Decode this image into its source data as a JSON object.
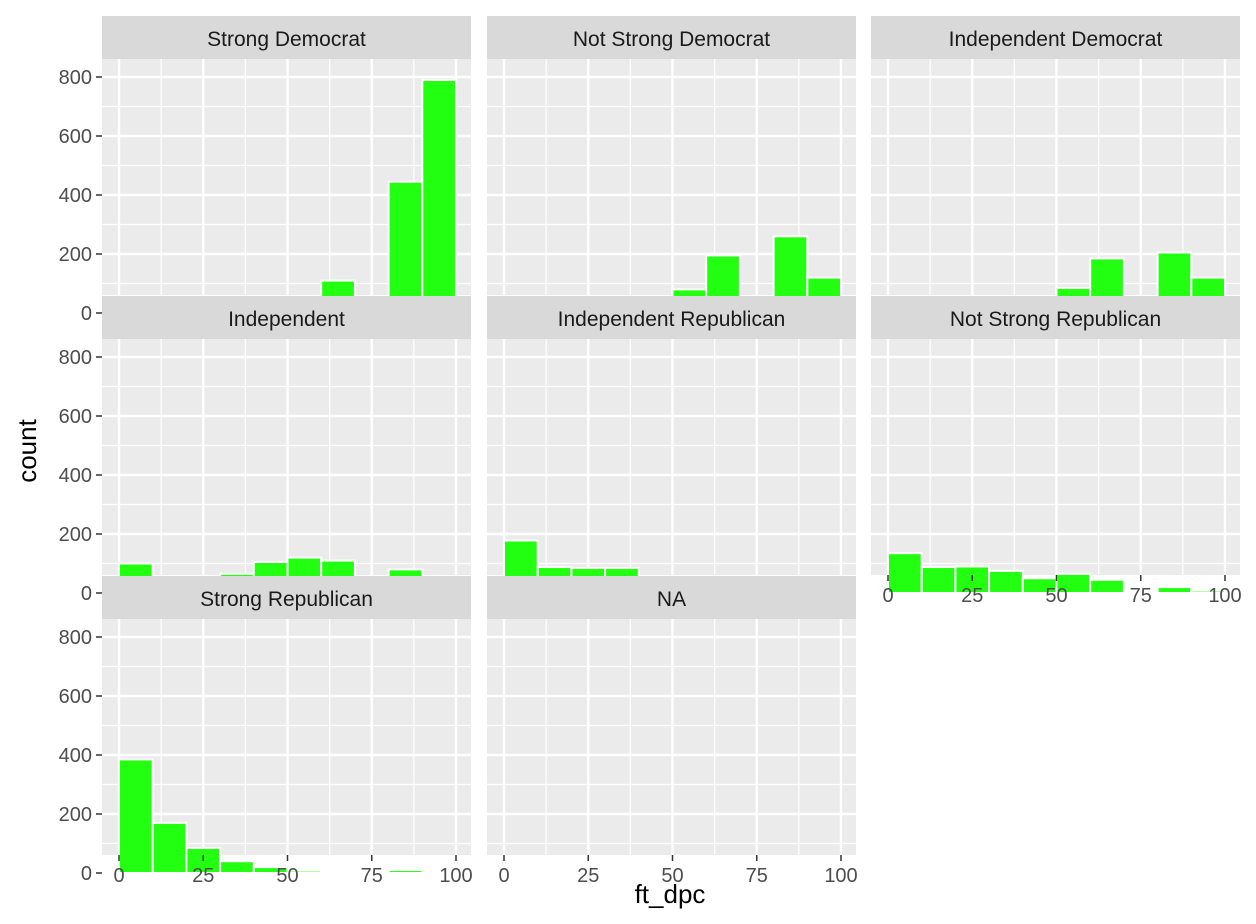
{
  "chart_data": {
    "type": "histogram",
    "xlabel": "ft_dpc",
    "ylabel": "count",
    "ylim": [
      0,
      800
    ],
    "yticks": [
      0,
      200,
      400,
      600,
      800
    ],
    "xlim": [
      0,
      100
    ],
    "xticks": [
      0,
      25,
      50,
      75,
      100
    ],
    "bin_width": 10,
    "bin_centers": [
      5,
      15,
      25,
      35,
      45,
      55,
      65,
      75,
      85,
      95
    ],
    "grid": true,
    "colors": {
      "bar_fill": "#22ff11",
      "bar_stroke": "#ffffff",
      "panel_bg": "#ebebeb",
      "strip_bg": "#d9d9d9",
      "grid": "#ffffff"
    },
    "facets": [
      {
        "name": "Strong Democrat",
        "values": [
          10,
          5,
          5,
          3,
          10,
          28,
          110,
          50,
          445,
          790
        ]
      },
      {
        "name": "Not Strong Democrat",
        "values": [
          18,
          12,
          15,
          20,
          40,
          80,
          195,
          50,
          260,
          120
        ]
      },
      {
        "name": "Independent Democrat",
        "values": [
          5,
          2,
          3,
          25,
          35,
          85,
          185,
          35,
          205,
          120
        ]
      },
      {
        "name": "Independent",
        "values": [
          100,
          45,
          50,
          65,
          105,
          120,
          110,
          18,
          80,
          50
        ]
      },
      {
        "name": "Independent Republican",
        "values": [
          178,
          88,
          85,
          85,
          30,
          40,
          40,
          3,
          12,
          5
        ]
      },
      {
        "name": "Not Strong Republican",
        "values": [
          135,
          88,
          90,
          75,
          50,
          65,
          45,
          5,
          20,
          8
        ]
      },
      {
        "name": "Strong Republican",
        "values": [
          385,
          170,
          85,
          40,
          20,
          8,
          3,
          2,
          10,
          5
        ]
      },
      {
        "name": "NA",
        "values": [
          0,
          0,
          0,
          0,
          3,
          2,
          1,
          0,
          0,
          0
        ]
      }
    ]
  }
}
